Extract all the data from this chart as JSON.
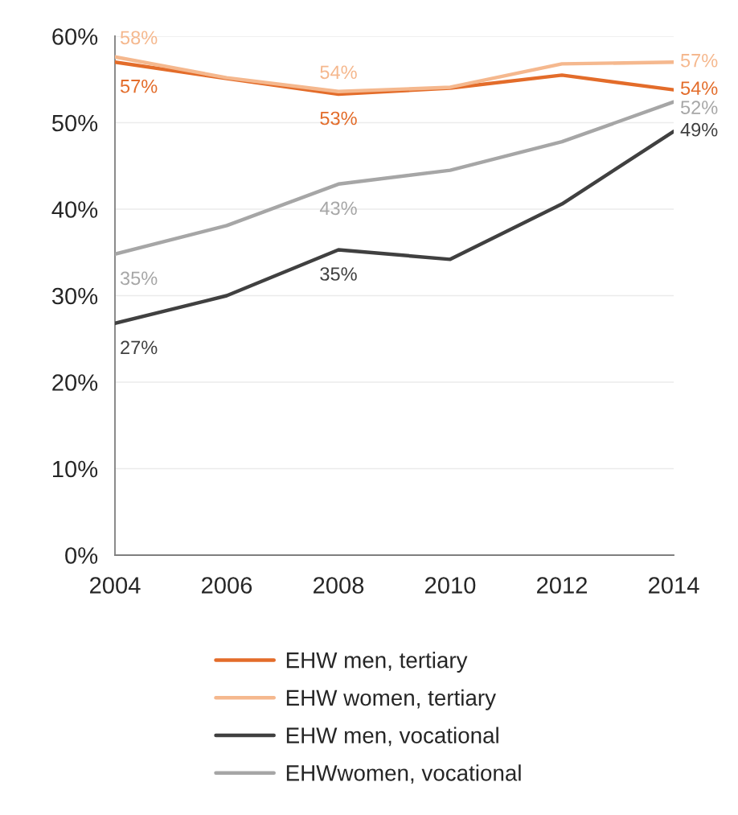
{
  "chart_data": {
    "type": "line",
    "x": [
      2004,
      2006,
      2008,
      2010,
      2012,
      2014
    ],
    "xlim": [
      2004,
      2014
    ],
    "xticks": [
      2004,
      2006,
      2008,
      2010,
      2012,
      2014
    ],
    "ylim": [
      0,
      60
    ],
    "yticks": [
      {
        "value": 0,
        "label": "0%"
      },
      {
        "value": 10,
        "label": "10%"
      },
      {
        "value": 20,
        "label": "20%"
      },
      {
        "value": 30,
        "label": "30%"
      },
      {
        "value": 40,
        "label": "40%"
      },
      {
        "value": 50,
        "label": "50%"
      },
      {
        "value": 60,
        "label": "60%"
      }
    ],
    "grid": "y",
    "legend": "bottom",
    "line_style": "solid",
    "series": [
      {
        "name": "EHW men, tertiary",
        "color": "#e36c2a",
        "values": [
          57.0,
          55.1,
          53.3,
          54.0,
          55.5,
          53.8
        ],
        "value_labels": [
          "57%",
          null,
          "53%",
          null,
          null,
          "54%"
        ]
      },
      {
        "name": "EHW women, tertiary",
        "color": "#f5b88e",
        "values": [
          57.6,
          55.2,
          53.6,
          54.1,
          56.8,
          57.0
        ],
        "value_labels": [
          "58%",
          null,
          "54%",
          null,
          null,
          "57%"
        ]
      },
      {
        "name": "EHW men, vocational",
        "color": "#404040",
        "values": [
          26.8,
          30.0,
          35.3,
          34.2,
          40.6,
          49.0
        ],
        "value_labels": [
          "27%",
          null,
          "35%",
          null,
          null,
          "49%"
        ]
      },
      {
        "name": "EHWwomen, vocational",
        "color": "#a6a6a6",
        "values": [
          34.8,
          38.1,
          42.9,
          44.5,
          47.8,
          52.4
        ],
        "value_labels": [
          "35%",
          null,
          "43%",
          null,
          null,
          "52%"
        ]
      }
    ]
  }
}
